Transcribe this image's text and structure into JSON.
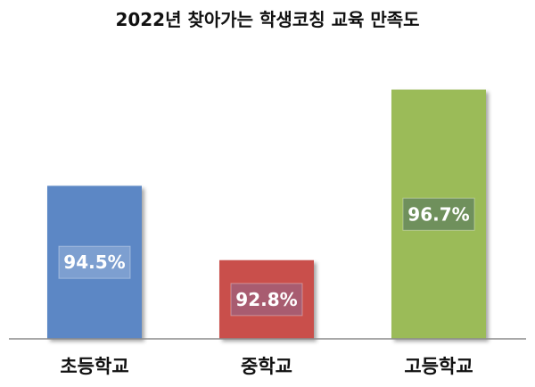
{
  "chart_data": {
    "type": "bar",
    "title": "2022년 찾아가는 학생코칭 교육 만족도",
    "categories": [
      "초등학교",
      "중학교",
      "고등학교"
    ],
    "values": [
      94.5,
      92.8,
      96.7
    ],
    "value_labels": [
      "94.5%",
      "92.8%",
      "96.7%"
    ],
    "ylim": [
      91.0,
      97.2
    ],
    "grid": false,
    "legend": "none",
    "colors": [
      "#5b87c5",
      "#c9504c",
      "#9bbb59"
    ],
    "label_box_colors": [
      "#7d9fd0",
      "#a85c70",
      "#6f905c"
    ]
  }
}
